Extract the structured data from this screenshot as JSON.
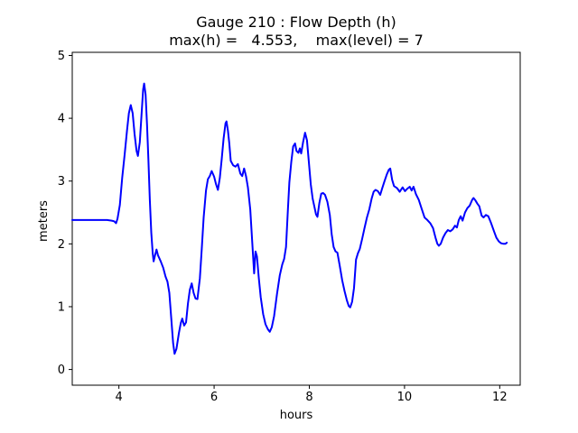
{
  "figure": {
    "background": "#ffffff",
    "frame_color": "#000000"
  },
  "chart_data": {
    "type": "line",
    "title": "Gauge 210 : Flow Depth (h)",
    "subtitle": "max(h) =   4.553,    max(level) = 7",
    "xlabel": "hours",
    "ylabel": "meters",
    "max_h": 4.553,
    "max_level": 7,
    "grid": false,
    "legend": false,
    "line_color": "#0000ff",
    "line_width": 2,
    "x_axis": {
      "label": "hours",
      "ticks": [
        4,
        6,
        8,
        10,
        12
      ],
      "range": [
        3.02,
        12.43
      ]
    },
    "y_axis": {
      "label": "meters",
      "ticks": [
        0,
        1,
        2,
        3,
        4,
        5
      ],
      "range": [
        -0.25,
        5.05
      ]
    },
    "series": [
      {
        "name": "flow-depth-h",
        "x_units": "hours",
        "y_units": "meters",
        "points": [
          [
            3.02,
            2.38
          ],
          [
            3.2,
            2.38
          ],
          [
            3.4,
            2.38
          ],
          [
            3.6,
            2.38
          ],
          [
            3.75,
            2.38
          ],
          [
            3.85,
            2.37
          ],
          [
            3.9,
            2.36
          ],
          [
            3.94,
            2.33
          ],
          [
            3.97,
            2.4
          ],
          [
            4.02,
            2.62
          ],
          [
            4.07,
            3.05
          ],
          [
            4.12,
            3.42
          ],
          [
            4.17,
            3.8
          ],
          [
            4.21,
            4.08
          ],
          [
            4.25,
            4.21
          ],
          [
            4.29,
            4.08
          ],
          [
            4.33,
            3.75
          ],
          [
            4.37,
            3.48
          ],
          [
            4.4,
            3.4
          ],
          [
            4.44,
            3.62
          ],
          [
            4.48,
            4.12
          ],
          [
            4.51,
            4.46
          ],
          [
            4.53,
            4.553
          ],
          [
            4.56,
            4.38
          ],
          [
            4.59,
            3.9
          ],
          [
            4.62,
            3.35
          ],
          [
            4.65,
            2.7
          ],
          [
            4.68,
            2.18
          ],
          [
            4.71,
            1.85
          ],
          [
            4.73,
            1.72
          ],
          [
            4.76,
            1.82
          ],
          [
            4.79,
            1.91
          ],
          [
            4.82,
            1.82
          ],
          [
            4.85,
            1.77
          ],
          [
            4.88,
            1.72
          ],
          [
            4.93,
            1.62
          ],
          [
            4.98,
            1.48
          ],
          [
            5.02,
            1.4
          ],
          [
            5.06,
            1.22
          ],
          [
            5.1,
            0.82
          ],
          [
            5.14,
            0.42
          ],
          [
            5.17,
            0.25
          ],
          [
            5.21,
            0.33
          ],
          [
            5.26,
            0.58
          ],
          [
            5.3,
            0.74
          ],
          [
            5.33,
            0.81
          ],
          [
            5.37,
            0.7
          ],
          [
            5.41,
            0.75
          ],
          [
            5.45,
            1.05
          ],
          [
            5.49,
            1.27
          ],
          [
            5.53,
            1.37
          ],
          [
            5.57,
            1.22
          ],
          [
            5.61,
            1.13
          ],
          [
            5.65,
            1.12
          ],
          [
            5.7,
            1.45
          ],
          [
            5.74,
            1.92
          ],
          [
            5.78,
            2.42
          ],
          [
            5.83,
            2.85
          ],
          [
            5.87,
            3.03
          ],
          [
            5.91,
            3.08
          ],
          [
            5.95,
            3.16
          ],
          [
            6.0,
            3.07
          ],
          [
            6.04,
            2.95
          ],
          [
            6.08,
            2.86
          ],
          [
            6.12,
            3.05
          ],
          [
            6.16,
            3.35
          ],
          [
            6.2,
            3.68
          ],
          [
            6.24,
            3.92
          ],
          [
            6.26,
            3.95
          ],
          [
            6.29,
            3.8
          ],
          [
            6.32,
            3.6
          ],
          [
            6.35,
            3.32
          ],
          [
            6.4,
            3.25
          ],
          [
            6.45,
            3.23
          ],
          [
            6.5,
            3.27
          ],
          [
            6.55,
            3.12
          ],
          [
            6.59,
            3.08
          ],
          [
            6.63,
            3.2
          ],
          [
            6.67,
            3.08
          ],
          [
            6.71,
            2.9
          ],
          [
            6.76,
            2.55
          ],
          [
            6.8,
            2.05
          ],
          [
            6.84,
            1.53
          ],
          [
            6.87,
            1.88
          ],
          [
            6.9,
            1.8
          ],
          [
            6.94,
            1.45
          ],
          [
            6.98,
            1.15
          ],
          [
            7.03,
            0.88
          ],
          [
            7.08,
            0.72
          ],
          [
            7.13,
            0.64
          ],
          [
            7.17,
            0.6
          ],
          [
            7.21,
            0.67
          ],
          [
            7.26,
            0.85
          ],
          [
            7.32,
            1.2
          ],
          [
            7.38,
            1.5
          ],
          [
            7.43,
            1.67
          ],
          [
            7.47,
            1.76
          ],
          [
            7.51,
            1.95
          ],
          [
            7.55,
            2.55
          ],
          [
            7.58,
            2.98
          ],
          [
            7.62,
            3.3
          ],
          [
            7.66,
            3.55
          ],
          [
            7.7,
            3.6
          ],
          [
            7.73,
            3.48
          ],
          [
            7.77,
            3.45
          ],
          [
            7.8,
            3.52
          ],
          [
            7.83,
            3.44
          ],
          [
            7.87,
            3.62
          ],
          [
            7.91,
            3.77
          ],
          [
            7.95,
            3.65
          ],
          [
            7.99,
            3.3
          ],
          [
            8.03,
            2.95
          ],
          [
            8.07,
            2.72
          ],
          [
            8.11,
            2.58
          ],
          [
            8.14,
            2.47
          ],
          [
            8.17,
            2.43
          ],
          [
            8.21,
            2.65
          ],
          [
            8.25,
            2.8
          ],
          [
            8.29,
            2.81
          ],
          [
            8.33,
            2.78
          ],
          [
            8.38,
            2.67
          ],
          [
            8.43,
            2.46
          ],
          [
            8.47,
            2.15
          ],
          [
            8.51,
            1.95
          ],
          [
            8.55,
            1.88
          ],
          [
            8.59,
            1.86
          ],
          [
            8.64,
            1.65
          ],
          [
            8.69,
            1.42
          ],
          [
            8.74,
            1.25
          ],
          [
            8.79,
            1.1
          ],
          [
            8.83,
            1.01
          ],
          [
            8.86,
            0.99
          ],
          [
            8.9,
            1.08
          ],
          [
            8.94,
            1.3
          ],
          [
            8.98,
            1.75
          ],
          [
            9.02,
            1.85
          ],
          [
            9.06,
            1.92
          ],
          [
            9.11,
            2.08
          ],
          [
            9.16,
            2.25
          ],
          [
            9.21,
            2.42
          ],
          [
            9.26,
            2.55
          ],
          [
            9.31,
            2.72
          ],
          [
            9.35,
            2.83
          ],
          [
            9.39,
            2.86
          ],
          [
            9.44,
            2.84
          ],
          [
            9.49,
            2.78
          ],
          [
            9.53,
            2.88
          ],
          [
            9.58,
            3.0
          ],
          [
            9.63,
            3.11
          ],
          [
            9.67,
            3.18
          ],
          [
            9.7,
            3.2
          ],
          [
            9.74,
            3.02
          ],
          [
            9.78,
            2.92
          ],
          [
            9.84,
            2.89
          ],
          [
            9.9,
            2.83
          ],
          [
            9.96,
            2.9
          ],
          [
            10.01,
            2.84
          ],
          [
            10.06,
            2.88
          ],
          [
            10.11,
            2.91
          ],
          [
            10.15,
            2.85
          ],
          [
            10.19,
            2.91
          ],
          [
            10.24,
            2.79
          ],
          [
            10.3,
            2.7
          ],
          [
            10.36,
            2.56
          ],
          [
            10.42,
            2.42
          ],
          [
            10.48,
            2.38
          ],
          [
            10.54,
            2.33
          ],
          [
            10.6,
            2.25
          ],
          [
            10.65,
            2.1
          ],
          [
            10.69,
            2.0
          ],
          [
            10.72,
            1.97
          ],
          [
            10.76,
            2.0
          ],
          [
            10.81,
            2.1
          ],
          [
            10.86,
            2.17
          ],
          [
            10.91,
            2.22
          ],
          [
            10.96,
            2.2
          ],
          [
            11.01,
            2.23
          ],
          [
            11.06,
            2.29
          ],
          [
            11.1,
            2.26
          ],
          [
            11.14,
            2.38
          ],
          [
            11.18,
            2.44
          ],
          [
            11.22,
            2.37
          ],
          [
            11.27,
            2.5
          ],
          [
            11.32,
            2.57
          ],
          [
            11.37,
            2.61
          ],
          [
            11.42,
            2.7
          ],
          [
            11.45,
            2.73
          ],
          [
            11.49,
            2.69
          ],
          [
            11.53,
            2.64
          ],
          [
            11.57,
            2.6
          ],
          [
            11.62,
            2.45
          ],
          [
            11.66,
            2.42
          ],
          [
            11.71,
            2.46
          ],
          [
            11.76,
            2.44
          ],
          [
            11.82,
            2.33
          ],
          [
            11.88,
            2.2
          ],
          [
            11.93,
            2.1
          ],
          [
            11.98,
            2.04
          ],
          [
            12.03,
            2.01
          ],
          [
            12.08,
            2.0
          ],
          [
            12.12,
            2.0
          ],
          [
            12.15,
            2.02
          ]
        ]
      }
    ]
  }
}
